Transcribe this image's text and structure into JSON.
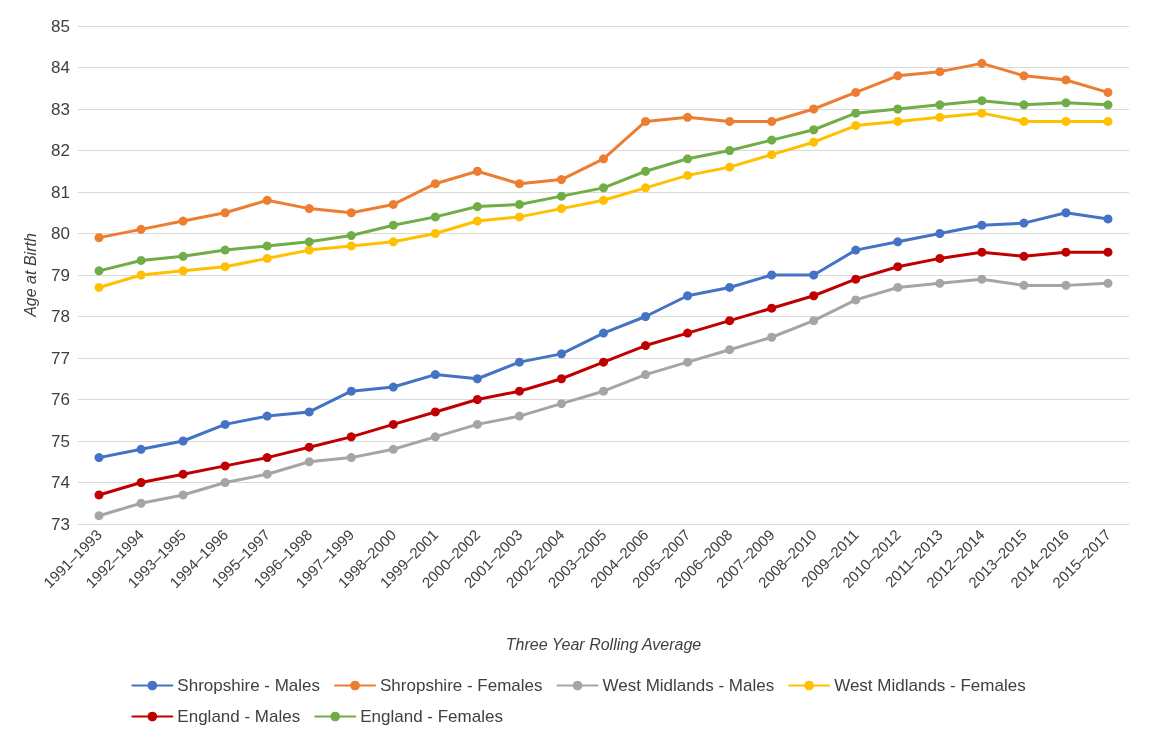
{
  "chart_data": {
    "type": "line",
    "xlabel": "Three Year Rolling Average",
    "ylabel": "Age at Birth",
    "categories": [
      "1991–1993",
      "1992–1994",
      "1993–1995",
      "1994–1996",
      "1995–1997",
      "1996–1998",
      "1997–1999",
      "1998–2000",
      "1999–2001",
      "2000–2002",
      "2001–2003",
      "2002–2004",
      "2003–2005",
      "2004–2006",
      "2005–2007",
      "2006–2008",
      "2007–2009",
      "2008–2010",
      "2009–2011",
      "2010–2012",
      "2011–2013",
      "2012–2014",
      "2013–2015",
      "2014–2016",
      "2015–2017"
    ],
    "series": [
      {
        "name": "Shropshire - Males",
        "color": "#4472c4",
        "values": [
          74.6,
          74.8,
          75.0,
          75.4,
          75.6,
          75.7,
          76.2,
          76.3,
          76.6,
          76.5,
          76.9,
          77.1,
          77.6,
          78.0,
          78.5,
          78.7,
          79.0,
          79.0,
          79.6,
          79.8,
          80.0,
          80.2,
          80.25,
          80.5,
          80.35
        ]
      },
      {
        "name": "Shropshire - Females",
        "color": "#ed7d31",
        "values": [
          79.9,
          80.1,
          80.3,
          80.5,
          80.8,
          80.6,
          80.5,
          80.7,
          81.2,
          81.5,
          81.2,
          81.3,
          81.8,
          82.7,
          82.8,
          82.7,
          82.7,
          83.0,
          83.4,
          83.8,
          83.9,
          84.1,
          83.8,
          83.7,
          83.4
        ]
      },
      {
        "name": "West Midlands - Males",
        "color": "#a5a5a5",
        "values": [
          73.2,
          73.5,
          73.7,
          74.0,
          74.2,
          74.5,
          74.6,
          74.8,
          75.1,
          75.4,
          75.6,
          75.9,
          76.2,
          76.6,
          76.9,
          77.2,
          77.5,
          77.9,
          78.4,
          78.7,
          78.8,
          78.9,
          78.75,
          78.75,
          78.8
        ]
      },
      {
        "name": "West Midlands - Females",
        "color": "#ffc000",
        "values": [
          78.7,
          79.0,
          79.1,
          79.2,
          79.4,
          79.6,
          79.7,
          79.8,
          80.0,
          80.3,
          80.4,
          80.6,
          80.8,
          81.1,
          81.4,
          81.6,
          81.9,
          82.2,
          82.6,
          82.7,
          82.8,
          82.9,
          82.7,
          82.7,
          82.7
        ]
      },
      {
        "name": "England - Males",
        "color": "#c00000",
        "values": [
          73.7,
          74.0,
          74.2,
          74.4,
          74.6,
          74.85,
          75.1,
          75.4,
          75.7,
          76.0,
          76.2,
          76.5,
          76.9,
          77.3,
          77.6,
          77.9,
          78.2,
          78.5,
          78.9,
          79.2,
          79.4,
          79.55,
          79.45,
          79.55,
          79.55
        ]
      },
      {
        "name": "England - Females",
        "color": "#70ad47",
        "values": [
          79.1,
          79.35,
          79.45,
          79.6,
          79.7,
          79.8,
          79.95,
          80.2,
          80.4,
          80.65,
          80.7,
          80.9,
          81.1,
          81.5,
          81.8,
          82.0,
          82.25,
          82.5,
          82.9,
          83.0,
          83.1,
          83.2,
          83.1,
          83.15,
          83.1
        ]
      }
    ],
    "ylim": [
      73,
      85
    ],
    "yticks": [
      73,
      74,
      75,
      76,
      77,
      78,
      79,
      80,
      81,
      82,
      83,
      84,
      85
    ],
    "grid": "y",
    "legend": "bottom",
    "marker": "circle",
    "line_style": "solid"
  }
}
